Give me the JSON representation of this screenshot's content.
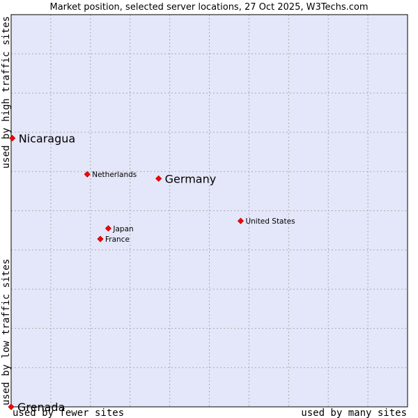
{
  "chart_data": {
    "type": "scatter",
    "title": "Market position, selected server locations, 27 Oct 2025, W3Techs.com",
    "xlabel_low": "used by fewer sites",
    "xlabel_high": "used by many sites",
    "ylabel_low": "used by low traffic sites",
    "ylabel_high": "used by high traffic sites",
    "xlim": [
      0,
      100
    ],
    "ylim": [
      0,
      100
    ],
    "grid": true,
    "colors": {
      "plot_background": "#e4e6f9",
      "grid": "#aaaaaa",
      "point": "#ff0000",
      "point_stroke": "#b00000",
      "frame": "#000000"
    },
    "points": [
      {
        "name": "Nicaragua",
        "x": 0.3,
        "y": 68.5,
        "size": "large"
      },
      {
        "name": "Netherlands",
        "x": 19.2,
        "y": 59.3,
        "size": "small"
      },
      {
        "name": "Germany",
        "x": 37.2,
        "y": 58.2,
        "size": "large"
      },
      {
        "name": "United States",
        "x": 57.9,
        "y": 47.4,
        "size": "small"
      },
      {
        "name": "Japan",
        "x": 24.5,
        "y": 45.5,
        "size": "small"
      },
      {
        "name": "France",
        "x": 22.5,
        "y": 42.8,
        "size": "small"
      },
      {
        "name": "Grenada",
        "x": 0,
        "y": 0,
        "size": "large"
      }
    ]
  }
}
